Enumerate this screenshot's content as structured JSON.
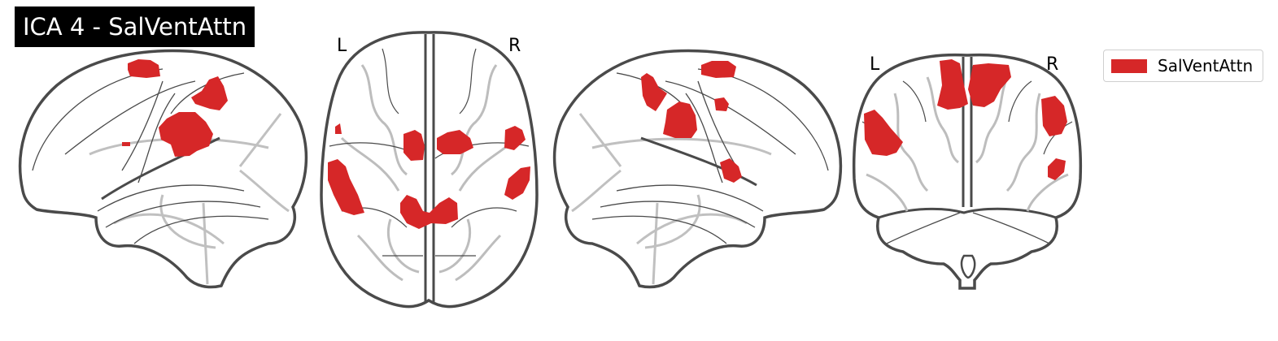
{
  "title": "ICA 4 - SalVentAttn",
  "views": {
    "axial": {
      "left_label": "L",
      "right_label": "R"
    },
    "coronal": {
      "left_label": "L",
      "right_label": "R"
    }
  },
  "legend": {
    "label": "SalVentAttn"
  },
  "colors": {
    "network": "#d62728",
    "outline": "#4a4a4a",
    "sulci": "#bdbdbd"
  }
}
